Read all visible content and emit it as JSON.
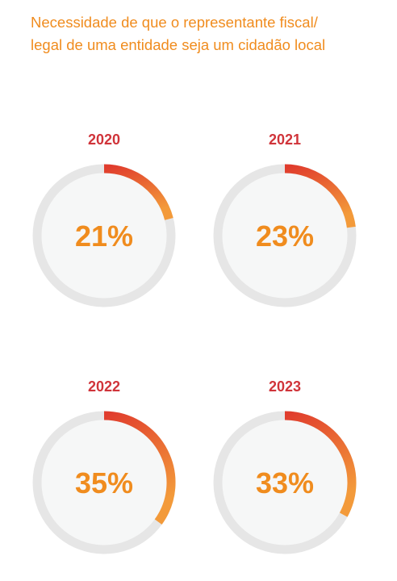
{
  "title_lines": [
    "Necessidade de que o representante fiscal/",
    "legal de uma entidade seja um cidadão local"
  ],
  "colors": {
    "title": "#f08c1e",
    "year_label": "#d0343a",
    "percent_label": "#f08c1e",
    "track": "#e6e6e6",
    "inner_fill": "#f6f7f7",
    "arc_start": "#e03c2d",
    "arc_end": "#f39a3a"
  },
  "chart_data": {
    "type": "donut",
    "title": "Necessidade de que o representante fiscal/legal de uma entidade seja um cidadão local",
    "unit": "%",
    "items": [
      {
        "year": "2020",
        "value": 21,
        "label": "21%"
      },
      {
        "year": "2021",
        "value": 23,
        "label": "23%"
      },
      {
        "year": "2022",
        "value": 35,
        "label": "35%"
      },
      {
        "year": "2023",
        "value": 33,
        "label": "33%"
      }
    ]
  }
}
